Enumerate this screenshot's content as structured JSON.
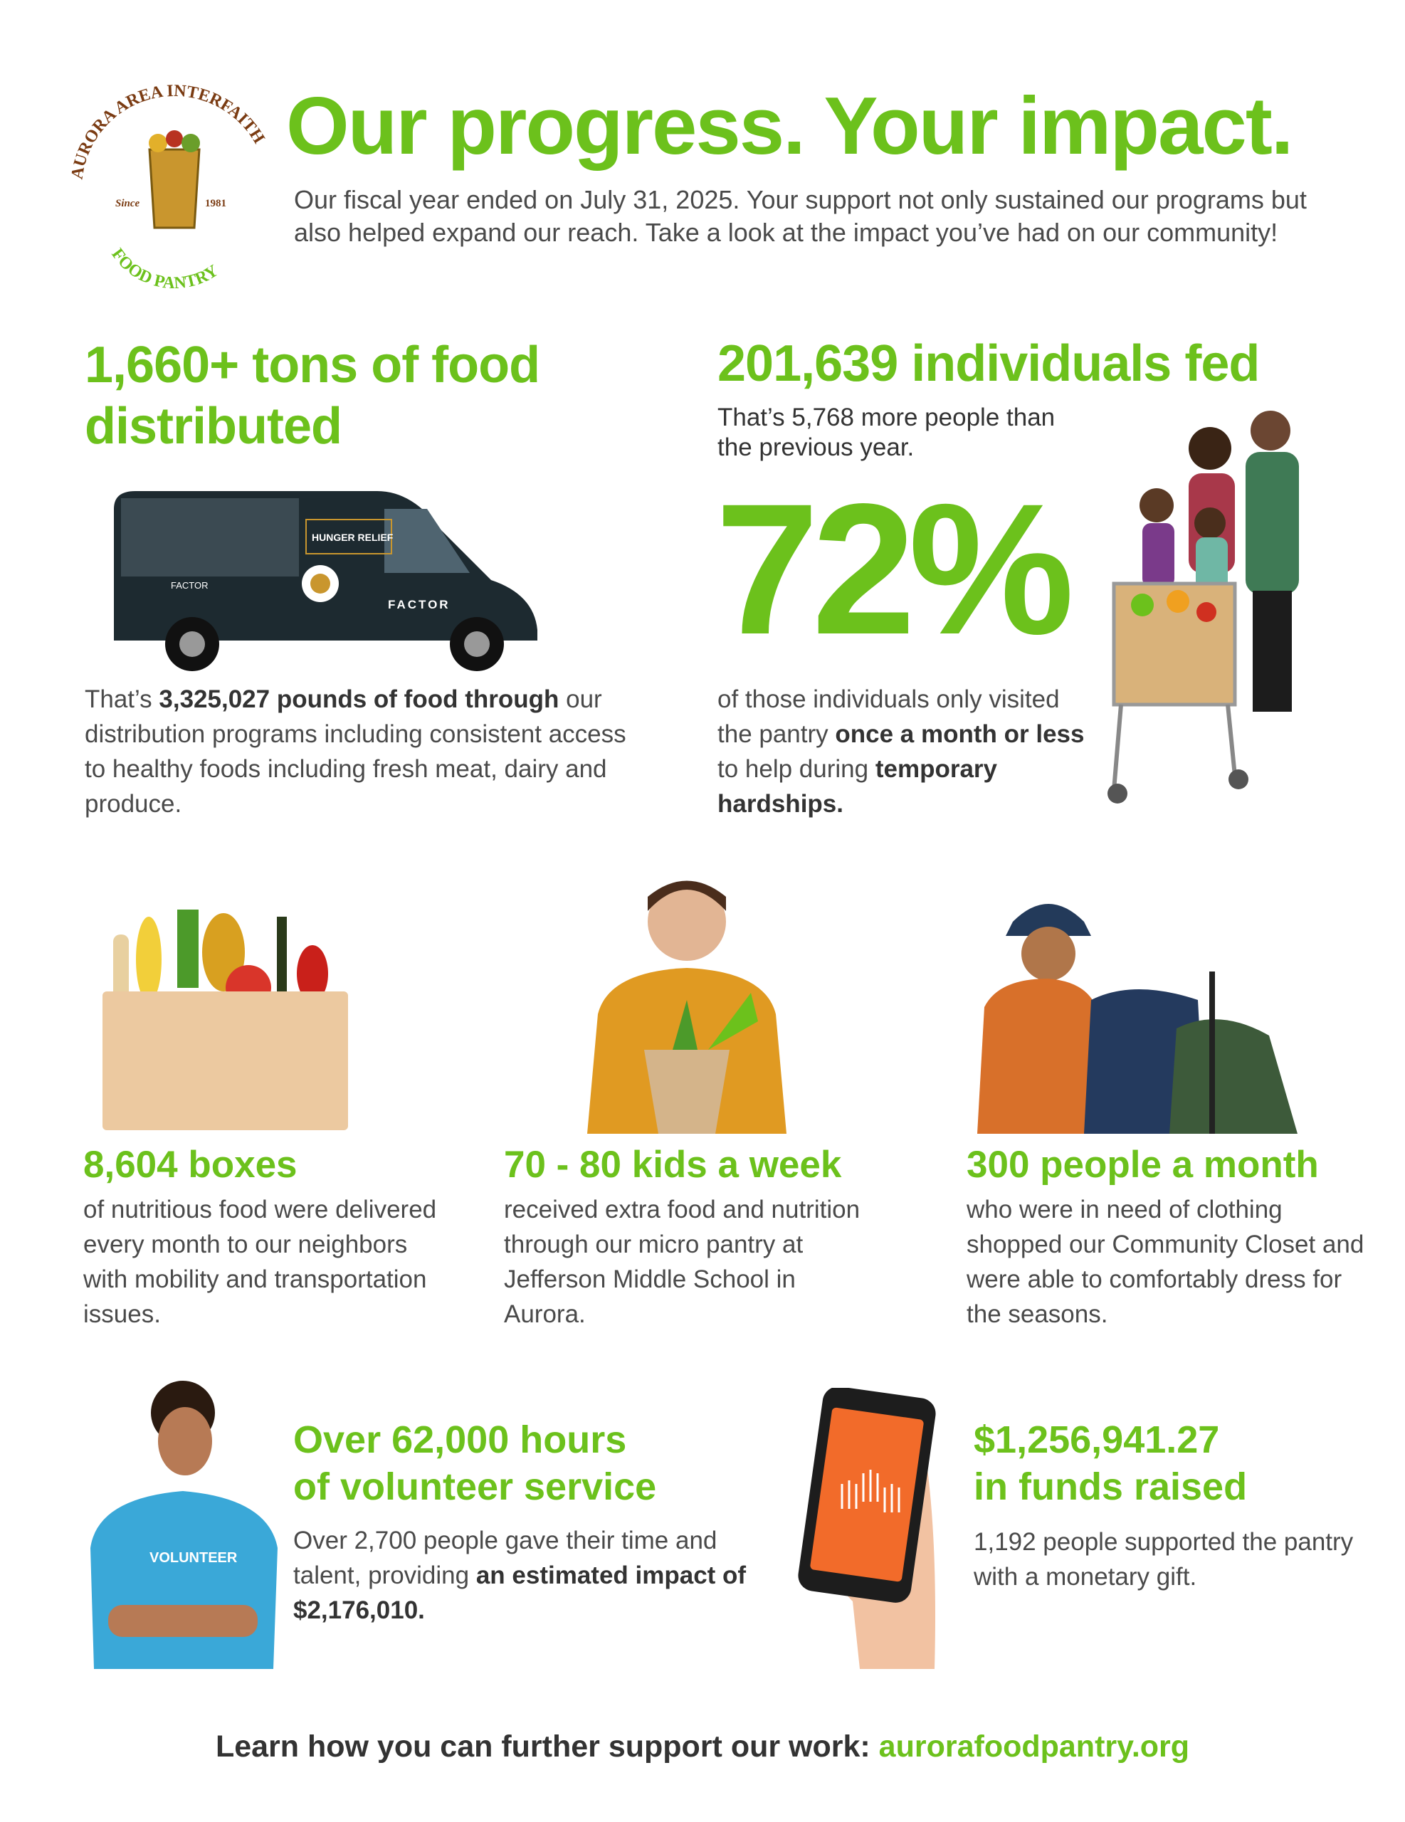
{
  "logo": {
    "text_top": "AURORA AREA INTERFAITH",
    "text_bottom": "FOOD PANTRY",
    "since": "Since",
    "year": "1981"
  },
  "header": {
    "title": "Our progress. Your impact.",
    "intro": "Our fiscal year ended on July 31, 2025. Your support not only sustained our programs but also helped expand our reach. Take a look at the impact you’ve had on our community!"
  },
  "food": {
    "heading": "1,660+ tons of food distributed",
    "text_pre": "That’s ",
    "text_bold": "3,325,027 pounds of food through",
    "text_post": " our distribution programs including consistent access to healthy foods including fresh meat, dairy and produce.",
    "van_labels": [
      "HUNGER RELIEF",
      "FACTOR",
      "FACTOR"
    ]
  },
  "individuals": {
    "heading": "201,639 individuals fed",
    "sub": "That’s 5,768 more people than the previous year.",
    "percent": "72%",
    "text_pre": "of those individuals only visited the pantry ",
    "text_bold": "once a month or less",
    "text_mid": " to help during ",
    "text_bold2": "temporary hardships."
  },
  "stats": [
    {
      "heading": "8,604 boxes",
      "text": "of nutritious food were delivered every month to our neighbors with mobility and transportation issues."
    },
    {
      "heading": "70 - 80 kids a week",
      "text": "received extra food and nutrition through our micro pantry at Jefferson Middle School in Aurora."
    },
    {
      "heading": "300 people a month",
      "text": "who were in need of clothing shopped our Community Closet and were able to comfortably dress for the seasons."
    }
  ],
  "volunteer": {
    "heading_line1": "Over 62,000 hours",
    "heading_line2": "of volunteer service",
    "text_pre": "Over 2,700 people gave their time and talent, providing ",
    "text_bold": "an estimated impact of $2,176,010.",
    "shirt": "VOLUNTEER"
  },
  "funds": {
    "heading_line1": "$1,256,941.27",
    "heading_line2": "in funds raised",
    "text": "1,192 people supported the pantry with a monetary gift."
  },
  "footer": {
    "text": "Learn how you can further support our work: ",
    "link": "aurorafoodpantry.org"
  },
  "colors": {
    "accent": "#6cc11c",
    "text": "#4a4a4a",
    "phone_screen": "#f26b2a"
  }
}
